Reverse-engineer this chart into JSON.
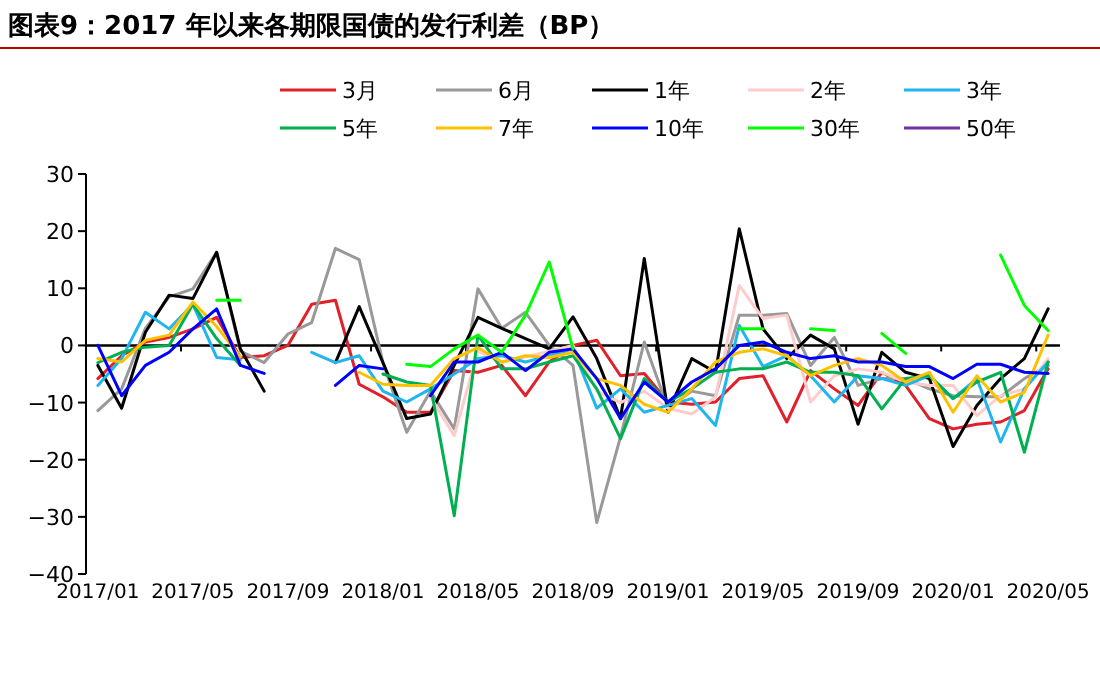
{
  "chart_data": {
    "type": "line",
    "title": "图表9：2017 年以来各期限国债的发行利差（BP）",
    "categories": [
      "2017/01",
      null,
      null,
      null,
      "2017/05",
      null,
      null,
      null,
      "2017/09",
      null,
      null,
      null,
      "2018/01",
      null,
      null,
      null,
      "2018/05",
      null,
      null,
      null,
      "2018/09",
      null,
      null,
      null,
      "2019/01",
      null,
      null,
      null,
      "2019/05",
      null,
      null,
      null,
      "2019/09",
      null,
      null,
      null,
      "2020/01",
      null,
      null,
      null,
      "2020/05"
    ],
    "ylim": [
      -40,
      30
    ],
    "yticks": [
      -40,
      -30,
      -20,
      -10,
      0,
      10,
      20,
      30
    ],
    "grid": false,
    "legend": "top",
    "marker": "none",
    "ref_lines": [
      {
        "axis": "y",
        "value": 0,
        "color": "#000000"
      }
    ],
    "series": [
      {
        "name": "3月",
        "color": "#e0202a",
        "values": [
          -5.8,
          -1.8,
          0.6,
          1.4,
          2.9,
          4.9,
          -2.1,
          -1.8,
          0,
          7.2,
          7.9,
          -6.8,
          -9,
          -11.7,
          -11.7,
          -4.4,
          -4.7,
          -3.5,
          -8.8,
          -2.9,
          0,
          0.9,
          -5.3,
          -4.9,
          -9.9,
          -10.3,
          -9.9,
          -5.8,
          -5.3,
          -13.4,
          -4.4,
          -7.6,
          -10.5,
          -4.7,
          -7,
          -12.8,
          -14.6,
          -13.8,
          -13.4,
          -11.4,
          -4.1
        ]
      },
      {
        "name": "6月",
        "color": "#999999",
        "values": [
          -11.4,
          -7.6,
          3,
          8.5,
          9.9,
          16.3,
          -1,
          -3,
          2,
          4,
          17,
          15,
          -3,
          -15.2,
          -8,
          -14.6,
          9.9,
          3,
          5.8,
          0,
          -3.5,
          -31,
          -16,
          0.6,
          -11,
          -8,
          -8.8,
          5.3,
          5.3,
          5.6,
          -3.5,
          1.4,
          -7,
          -5.8,
          -5.8,
          -7.6,
          -8.8,
          -9,
          -9,
          -5.8,
          -3.5
        ]
      },
      {
        "name": "1年",
        "color": "#000000",
        "values": [
          -3.5,
          -11,
          2.3,
          8.8,
          8.2,
          16.3,
          -0.6,
          -8,
          null,
          null,
          -3,
          6.8,
          -3,
          -12.8,
          -12,
          -3.5,
          4.9,
          3,
          1.2,
          -0.6,
          5,
          -2.3,
          -12.8,
          15.2,
          -11.7,
          -2.3,
          -4.7,
          20.4,
          2.9,
          -2.3,
          1.8,
          -0.6,
          -13.8,
          -1.2,
          -4.7,
          -5.8,
          -17.7,
          -10.5,
          -5.8,
          -2.3,
          6.4
        ]
      },
      {
        "name": "2年",
        "color": "#ffcccc",
        "values": [
          null,
          null,
          null,
          null,
          null,
          null,
          null,
          null,
          null,
          null,
          null,
          null,
          null,
          null,
          -9,
          -15.8,
          -1,
          -3,
          -2,
          -1,
          0,
          -8,
          -10,
          -8,
          -11,
          -12,
          -9,
          10.5,
          4.7,
          5.3,
          -9.9,
          -5.3,
          -4.1,
          -4.7,
          -6.4,
          -7,
          -7,
          -12.3,
          -8.8,
          -7.6,
          -2.3
        ]
      },
      {
        "name": "3年",
        "color": "#1fb5ef",
        "values": [
          -7,
          -2.3,
          5.8,
          2.9,
          7.2,
          -2.1,
          -2.5,
          null,
          null,
          -1.2,
          -3,
          -1.8,
          -8,
          -9.9,
          -7.6,
          -5,
          -2.3,
          -1.8,
          -2.9,
          -1.8,
          -0.6,
          -11,
          -7.6,
          -11.7,
          -10.5,
          -9.3,
          -14,
          3.5,
          -3.7,
          -1.8,
          -5.3,
          -9.9,
          -5.3,
          -5.8,
          -7,
          -5.3,
          -9.3,
          -5.8,
          -16.9,
          -7.6,
          -2.9
        ]
      },
      {
        "name": "5年",
        "color": "#00b050",
        "values": [
          -3,
          -1.2,
          -0.3,
          0,
          7.2,
          1.2,
          -3.5,
          null,
          null,
          null,
          null,
          null,
          -5,
          -6.4,
          -7,
          -29.8,
          1.8,
          -4.1,
          -4.1,
          -2.9,
          -1.8,
          -7.6,
          -16.3,
          -5.8,
          -9.9,
          -7.6,
          -4.7,
          -4.1,
          -4.1,
          -2.9,
          -4.7,
          -4.7,
          -5.3,
          -11.1,
          -5.8,
          -5.3,
          -9.3,
          -6.4,
          -4.7,
          -18.7,
          -2.9
        ]
      },
      {
        "name": "7年",
        "color": "#ffc000",
        "values": [
          -2.3,
          -2.9,
          0.9,
          1.8,
          7.6,
          3.3,
          -2,
          null,
          null,
          null,
          null,
          -4.7,
          -6.8,
          -7,
          -7,
          -2.3,
          -0.4,
          -2.9,
          -1.8,
          -2.1,
          -1.2,
          -5.8,
          -7,
          -10.3,
          -11.7,
          -7.6,
          -2.9,
          -1.2,
          -0.6,
          -1.8,
          -5.3,
          -3.5,
          -2.3,
          -3.5,
          -6.4,
          -4.7,
          -11.7,
          -5.3,
          -9.9,
          -8.2,
          1.8
        ]
      },
      {
        "name": "10年",
        "color": "#0000ff",
        "values": [
          0,
          -8.8,
          -3.5,
          -1.2,
          2.9,
          6.4,
          -3.5,
          -4.9,
          null,
          null,
          -7,
          -3.5,
          -4.1,
          null,
          -8.8,
          -2.9,
          -2.9,
          -1.2,
          -4.4,
          -1.2,
          -0.6,
          -5.8,
          -12.8,
          -6.4,
          -9.9,
          -6.4,
          -4.1,
          0,
          0.6,
          -1.2,
          -2.3,
          -1.8,
          -2.9,
          -2.9,
          -3.7,
          -3.7,
          -5.8,
          -3.3,
          -3.3,
          -4.7,
          -4.9
        ]
      },
      {
        "name": "30年",
        "color": "#00ff00",
        "values": [
          null,
          null,
          null,
          null,
          null,
          7.9,
          7.9,
          null,
          null,
          null,
          null,
          null,
          null,
          -3.3,
          -3.7,
          -0.6,
          1.8,
          -1.2,
          5.3,
          14.6,
          -0.6,
          null,
          null,
          null,
          null,
          null,
          null,
          2.9,
          2.9,
          null,
          2.9,
          2.6,
          null,
          2.1,
          -1.4,
          null,
          null,
          null,
          15.8,
          7,
          2.6
        ]
      },
      {
        "name": "50年",
        "color": "#7030a0",
        "values": [
          null,
          null,
          null,
          null,
          null,
          null,
          null,
          null,
          null,
          null,
          null,
          null,
          null,
          null,
          null,
          null,
          null,
          null,
          null,
          null,
          null,
          null,
          null,
          null,
          null,
          null,
          null,
          null,
          null,
          null,
          null,
          null,
          null,
          null,
          null,
          null,
          null,
          null,
          null,
          null,
          null
        ]
      }
    ]
  }
}
